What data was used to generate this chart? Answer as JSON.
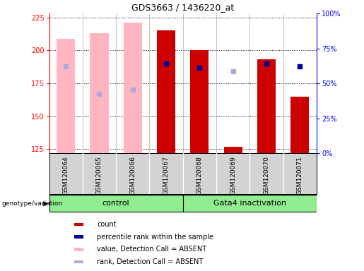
{
  "title": "GDS3663 / 1436220_at",
  "samples": [
    "GSM120064",
    "GSM120065",
    "GSM120066",
    "GSM120067",
    "GSM120068",
    "GSM120069",
    "GSM120070",
    "GSM120071"
  ],
  "ylim_left": [
    122,
    228
  ],
  "ylim_right": [
    0,
    100
  ],
  "yticks_left": [
    125,
    150,
    175,
    200,
    225
  ],
  "yticks_right": [
    0,
    25,
    50,
    75,
    100
  ],
  "ytick_labels_right": [
    "0%",
    "25%",
    "50%",
    "75%",
    "100%"
  ],
  "bar_color_absent": "#ffb6c1",
  "bar_color_present_red": "#cc0000",
  "dot_color_present": "#000099",
  "dot_color_absent": "#aaaadd",
  "absent_values": [
    209,
    213,
    221,
    null,
    null,
    null,
    null,
    null
  ],
  "absent_ranks": [
    188,
    167,
    170,
    null,
    null,
    null,
    null,
    null
  ],
  "present_values": [
    null,
    null,
    null,
    215,
    200,
    127,
    193,
    165
  ],
  "present_ranks": [
    null,
    null,
    null,
    190,
    187,
    null,
    190,
    188
  ],
  "absent_rank_only": [
    null,
    null,
    null,
    null,
    null,
    184,
    null,
    null
  ],
  "bar_width": 0.55,
  "dot_size": 25,
  "background_color": "#ffffff",
  "legend_items": [
    {
      "label": "count",
      "color": "#cc0000"
    },
    {
      "label": "percentile rank within the sample",
      "color": "#000099"
    },
    {
      "label": "value, Detection Call = ABSENT",
      "color": "#ffb6c1"
    },
    {
      "label": "rank, Detection Call = ABSENT",
      "color": "#aaaadd"
    }
  ],
  "group_color": "#90ee90",
  "label_bg_color": "#d3d3d3",
  "group_line_color": "#000000"
}
